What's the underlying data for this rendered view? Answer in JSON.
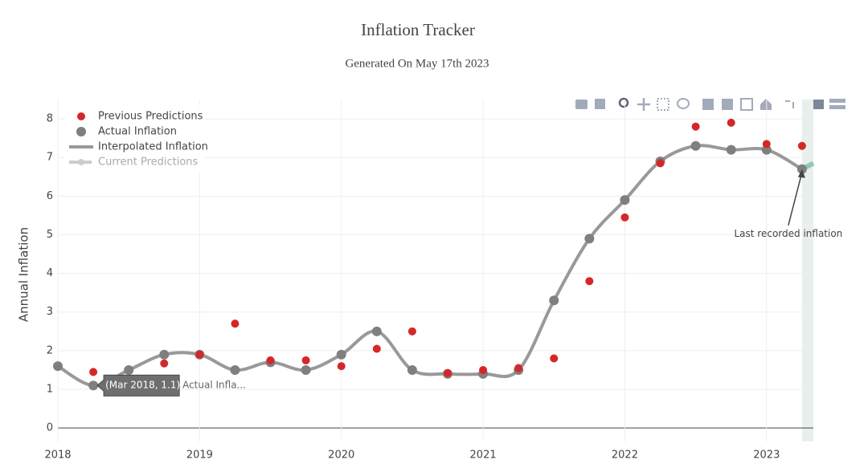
{
  "chart_data": {
    "type": "scatter",
    "title": "Inflation Tracker",
    "subtitle": "Generated On May 17th 2023",
    "y_label": "Annual Inflation",
    "xlim": [
      2018,
      2023.33
    ],
    "ylim": [
      -0.35,
      8.5
    ],
    "xticks": [
      2018,
      2019,
      2020,
      2021,
      2022,
      2023
    ],
    "yticks": [
      0,
      1,
      2,
      3,
      4,
      5,
      6,
      7,
      8
    ],
    "grid": true,
    "legend": "top-left",
    "series": [
      {
        "name": "Previous Predictions",
        "color": "#d62728",
        "mode": "markers",
        "x": [
          2018.25,
          2018.75,
          2019.0,
          2019.25,
          2019.5,
          2019.75,
          2020.0,
          2020.25,
          2020.5,
          2020.75,
          2021.0,
          2021.25,
          2021.5,
          2021.75,
          2022.0,
          2022.25,
          2022.5,
          2022.75,
          2023.0,
          2023.25
        ],
        "values": [
          1.45,
          1.67,
          1.9,
          2.7,
          1.75,
          1.75,
          1.6,
          2.05,
          2.5,
          1.42,
          1.5,
          1.55,
          1.8,
          3.8,
          5.45,
          6.85,
          7.8,
          7.9,
          7.35,
          7.3
        ]
      },
      {
        "name": "Actual Inflation",
        "color": "#7f7f7f",
        "mode": "markers",
        "x": [
          2018.0,
          2018.25,
          2018.5,
          2018.75,
          2019.0,
          2019.25,
          2019.5,
          2019.75,
          2020.0,
          2020.25,
          2020.5,
          2020.75,
          2021.0,
          2021.25,
          2021.5,
          2021.75,
          2022.0,
          2022.25,
          2022.5,
          2022.75,
          2023.0,
          2023.25
        ],
        "values": [
          1.6,
          1.1,
          1.5,
          1.9,
          1.9,
          1.5,
          1.7,
          1.5,
          1.9,
          2.5,
          1.5,
          1.4,
          1.4,
          1.5,
          3.3,
          4.9,
          5.9,
          6.9,
          7.3,
          7.2,
          7.2,
          6.7
        ]
      },
      {
        "name": "Interpolated Inflation",
        "color": "#999999",
        "mode": "spline",
        "x": [
          2018.0,
          2018.25,
          2018.5,
          2018.75,
          2019.0,
          2019.25,
          2019.5,
          2019.75,
          2020.0,
          2020.25,
          2020.5,
          2020.75,
          2021.0,
          2021.25,
          2021.5,
          2021.75,
          2022.0,
          2022.25,
          2022.5,
          2022.75,
          2023.0,
          2023.25
        ],
        "values": [
          1.6,
          1.1,
          1.5,
          1.9,
          1.9,
          1.5,
          1.7,
          1.5,
          1.9,
          2.5,
          1.5,
          1.4,
          1.4,
          1.5,
          3.3,
          4.9,
          5.9,
          6.9,
          7.3,
          7.2,
          7.2,
          6.7
        ]
      },
      {
        "name": "Current Predictions",
        "color": "#8fc9b3",
        "mode": "lines",
        "x": [
          2023.25,
          2023.33
        ],
        "values": [
          6.7,
          6.85
        ]
      }
    ],
    "annotations": [
      {
        "text": "Last recorded inflation",
        "x": 2023.25,
        "y": 6.7
      }
    ],
    "hover_label": {
      "text": "(Mar 2018, 1.1)",
      "name": "Actual Infla..."
    }
  }
}
